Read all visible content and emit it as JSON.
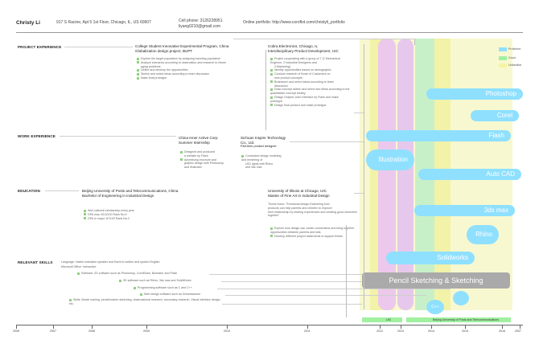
{
  "header": {
    "name": "Christy Li",
    "address": "917 S Racine, Apt 5 1st Floor, Chicago, IL, US 60607",
    "cell_label": "Cell phone: 3126228951",
    "email": "liyang0210@gmail.com",
    "portfolio": "Online portfolio: http://www.coroflot.com/christyli_portfolio"
  },
  "sections": {
    "project": "PROJECT EXPERIENCE",
    "work": "WORK EXPERIENCE",
    "education": "EDUCATION",
    "skills": "RELEVANT SKILLS"
  },
  "project1": {
    "title1": "College Student Innovative Experimental Program, China",
    "title2": "Globalization design project, BUPT",
    "items": [
      "Explore the target population by analyzing traveling population",
      "Analyze scenarios according to observation and research to inform",
      "aging problems",
      "Define and develop the opportunities",
      "Sketch and select ideas according to team discussion",
      "Make final prototype"
    ]
  },
  "project2": {
    "title1": "Cobra Electronics, Chicago, IL",
    "title2": "Interdisciplinary Product Development, UIC",
    "items": [
      "Project cooperating with a group of 7 (2 Mechanical Engineer, 2 Industrial Designers and",
      "3 Marketing)",
      "Identify opportunities based on demographic",
      "Conduct research of those of Customers on",
      "new product concepts",
      "Brainstorm and select ideas according to team",
      "discussion",
      "Draw concept sketch and select two ideas according to the quantitative concept testing",
      "Design Graphic User Interface by Flash and make prototype",
      "Design final product and make prototype"
    ]
  },
  "work1": {
    "title1": "China Inner Active Corp",
    "title2": "Summer Internship",
    "items": [
      "Designed and produced",
      "a website by Flash",
      "Advertising brochure and",
      "graphic design with Photoshop and Illustrator"
    ]
  },
  "work2": {
    "title1": "Sichuan Inspire Technology Co., Ltd.",
    "title2": "Part-time product designer",
    "items": [
      "Conducted design modeling and rendering of",
      "LED lights with Rhino",
      "and 3ds max"
    ]
  },
  "edu1": {
    "title1": "Beijing University of Posts and Telecommunications, China",
    "title2": "Bachelor of Engineering in Industrial Design",
    "items": [
      "Won national scholarship every year",
      "GPA was: 83.5/100 Rank No.5",
      "GPA in major: 87/100 Rank No.2"
    ]
  },
  "edu2": {
    "title1": "University of Illinois at Chicago, UIC",
    "title2": "Master of Fine Art in Industrial Design",
    "thesis": [
      "Thesis focus: \"Emotional design-Examining how",
      "products can help parents and children to improve",
      "their relationship by sharing experiences and creating good memories together\""
    ],
    "items": [
      "Explore how design can create connections and bring together opportunities between parents and kids",
      "Develop different project statements to support thesis"
    ]
  },
  "skills": {
    "language": "Language: Native mandarin speaker and fluent in written and spoken English",
    "office": "Microsoft Office: Interactive",
    "items": [
      "Software: 2D software such as Photoshop, CorelDraw, Illustrator and Flash",
      "3D software such as Rhino, 3ds max and SolidWorks",
      "Programming software such as C and C++",
      "Web design software such as Dreamweaver",
      "Skills: Model making, pencil/marker sketching, observational research, secondary research, Visual interface design, etc."
    ]
  },
  "legend": {
    "items": [
      {
        "label": "Proficient",
        "color": "#8fe0ff"
      },
      {
        "label": "Good",
        "color": "#a0f0a0"
      },
      {
        "label": "Unfamiliar",
        "color": "#f5f5a0"
      }
    ]
  },
  "bubbles": {
    "photoshop": "Photoshop",
    "coreldraw": "Corel",
    "flash": "Flash",
    "illustration": "Illustration",
    "autocad": "Auto CAD",
    "3dsmax": "3ds max",
    "rhino": "Rhino",
    "solidworks": "Solidworks",
    "pencil": "Pencil Sketching & Sketching",
    "c": "C++"
  },
  "timeline": {
    "years": [
      "2006",
      "2007",
      "2008",
      "2009",
      "2010",
      "2011",
      "2012",
      "2013",
      "2014",
      "2015",
      "2016",
      "2007"
    ],
    "uic_label": "UIC",
    "bupt_label": "Beijing University of Posts and Telecommunications"
  },
  "colors": {
    "accent_blue": "#8fe0ff",
    "band_pink": "#f0c8f0",
    "band_yellow": "#f5f5a0",
    "band_green": "#c8f0c8",
    "gray_pill": "#aaaaaa",
    "bullet_green": "#8fd080"
  }
}
